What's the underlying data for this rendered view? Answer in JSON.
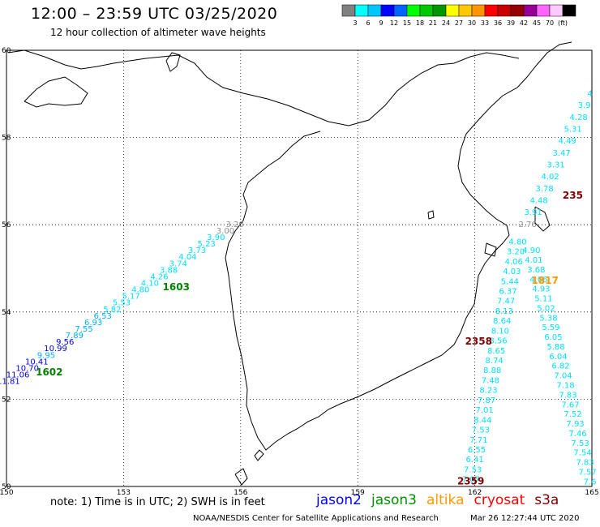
{
  "header": {
    "title": "12:00 – 23:59 UTC 03/25/2020",
    "subtitle": "12 hour collection of altimeter wave heights"
  },
  "colorbar": {
    "colors": [
      "#808080",
      "#00ffff",
      "#00c8ff",
      "#0000ff",
      "#0064ff",
      "#00ff00",
      "#00c800",
      "#009600",
      "#ffff00",
      "#ffc800",
      "#ff9600",
      "#ff0000",
      "#c80000",
      "#960000",
      "#960096",
      "#ff64ff",
      "#ffc8ff",
      "#000000"
    ],
    "labels": [
      "3",
      "6",
      "9",
      "12",
      "15",
      "18",
      "21",
      "24",
      "27",
      "30",
      "33",
      "36",
      "39",
      "42",
      "45",
      "70",
      "(ft)"
    ]
  },
  "axes": {
    "x_ticks": [
      150,
      153,
      156,
      159,
      162,
      165
    ],
    "y_ticks": [
      50,
      52,
      54,
      56,
      58,
      60
    ],
    "xlim": [
      150,
      165
    ],
    "ylim": [
      50,
      60
    ]
  },
  "swh_colors": {
    "cyan": "#00e0ff",
    "light_blue": "#00b0f0",
    "blue": "#0000e0",
    "grey": "#909090"
  },
  "tracks": [
    {
      "name": "jason3-west",
      "color": "#00e0ff",
      "label_color": "#008000",
      "start": [
        150.05,
        52.35
      ],
      "end": [
        155.85,
        55.95
      ],
      "values": [
        "11.81",
        "11.06",
        "10.70",
        "10.41",
        "9.95",
        "10.99",
        "9.56",
        "7.89",
        "7.55",
        "6.93",
        "6.53",
        "5.82",
        "5.53",
        "5.17",
        "4.80",
        "4.10",
        "4.26",
        "3.88",
        "3.74",
        "4.04",
        "3.73",
        "5.23",
        "3.90",
        "3.00",
        "3.20"
      ],
      "value_colors": [
        "#0000e0",
        "#0000e0",
        "#0000e0",
        "#0000e0",
        "#00b0f0",
        "#0000e0",
        "#0000e0",
        "#00b0f0",
        "#00b0f0",
        "#00b0f0",
        "#00b0f0",
        "#00e0ff",
        "#00e0ff",
        "#00e0ff",
        "#00e0ff",
        "#00e0ff",
        "#00e0ff",
        "#00e0ff",
        "#00e0ff",
        "#00e0ff",
        "#00e0ff",
        "#00e0ff",
        "#00e0ff",
        "#909090",
        "#909090"
      ],
      "time_labels": [
        {
          "text": "1602",
          "lon": 150.75,
          "lat": 52.55
        },
        {
          "text": "1603",
          "lon": 154.0,
          "lat": 54.5
        }
      ]
    },
    {
      "name": "cryosat-a",
      "color": "#00e0ff",
      "label_color": "#800000",
      "start": [
        164.95,
        58.95
      ],
      "end": [
        163.35,
        55.95
      ],
      "values": [
        "4",
        "3.9",
        "4.28",
        "5.31",
        "4.49",
        "3.47",
        "3.31",
        "4.02",
        "3.78",
        "4.48",
        "3.91",
        "2.76"
      ],
      "value_colors": [
        "#00e0ff",
        "#00e0ff",
        "#00e0ff",
        "#00e0ff",
        "#00e0ff",
        "#00e0ff",
        "#00e0ff",
        "#00e0ff",
        "#00e0ff",
        "#00e0ff",
        "#00e0ff",
        "#909090"
      ],
      "time_labels": [
        {
          "text": "235",
          "lon": 164.25,
          "lat": 56.6
        }
      ]
    },
    {
      "name": "cryosat-b",
      "color": "#00e0ff",
      "label_color": "#800000",
      "start": [
        161.9,
        50.1
      ],
      "end": [
        163.1,
        55.55
      ],
      "values": [
        "7.07",
        "7.53",
        "6.41",
        "6.55",
        "7.71",
        "7.53",
        "8.44",
        "7.01",
        "7.87",
        "8.23",
        "7.48",
        "8.88",
        "8.74",
        "8.65",
        "8.56",
        "8.10",
        "8.64",
        "8.13",
        "7.47",
        "6.37",
        "5.44",
        "4.03",
        "4.06",
        "3.20",
        "4.80"
      ],
      "value_colors": [
        "#00e0ff",
        "#00e0ff",
        "#00e0ff",
        "#00e0ff",
        "#00e0ff",
        "#00e0ff",
        "#00e0ff",
        "#00e0ff",
        "#00e0ff",
        "#00e0ff",
        "#00e0ff",
        "#00e0ff",
        "#00e0ff",
        "#00e0ff",
        "#00e0ff",
        "#00e0ff",
        "#00e0ff",
        "#00e0ff",
        "#00e0ff",
        "#00e0ff",
        "#00e0ff",
        "#00e0ff",
        "#00e0ff",
        "#00e0ff",
        "#00e0ff"
      ],
      "time_labels": [
        {
          "text": "2359",
          "lon": 161.55,
          "lat": 50.05
        },
        {
          "text": "2358",
          "lon": 161.75,
          "lat": 53.25
        }
      ]
    },
    {
      "name": "cryosat-c",
      "color": "#00e0ff",
      "label_color": "#800000",
      "start": [
        164.95,
        50.05
      ],
      "end": [
        163.45,
        55.35
      ],
      "values": [
        "7.6",
        "7.57",
        "7.83",
        "7.54",
        "7.53",
        "7.46",
        "7.93",
        "7.52",
        "7.67",
        "7.83",
        "7.18",
        "7.04",
        "6.82",
        "6.04",
        "5.88",
        "6.05",
        "5.59",
        "5.38",
        "5.02",
        "5.11",
        "4.93",
        "4.06",
        "3.68",
        "4.01",
        "4.90"
      ],
      "value_colors": [
        "#00e0ff",
        "#00e0ff",
        "#00e0ff",
        "#00e0ff",
        "#00e0ff",
        "#00e0ff",
        "#00e0ff",
        "#00e0ff",
        "#00e0ff",
        "#00e0ff",
        "#00e0ff",
        "#00e0ff",
        "#00e0ff",
        "#00e0ff",
        "#00e0ff",
        "#00e0ff",
        "#00e0ff",
        "#00e0ff",
        "#00e0ff",
        "#00e0ff",
        "#00e0ff",
        "#00e0ff",
        "#00e0ff",
        "#00e0ff",
        "#00e0ff"
      ],
      "time_labels": []
    },
    {
      "name": "altika",
      "color": "#ff9900",
      "label_color": "#ff9900",
      "start": [
        163.7,
        54.72
      ],
      "end": [
        163.7,
        54.72
      ],
      "values": [],
      "value_colors": [],
      "time_labels": [
        {
          "text": "1817",
          "lon": 163.45,
          "lat": 54.65
        }
      ]
    }
  ],
  "footer": {
    "note": "note:  1) Time is in UTC;  2) SWH is in feet",
    "legend": [
      {
        "name": "jason2",
        "color": "#0000ff"
      },
      {
        "name": "jason3",
        "color": "#009000"
      },
      {
        "name": "altika",
        "color": "#ff9900"
      },
      {
        "name": "cryosat",
        "color": "#ff0000"
      },
      {
        "name": "s3a",
        "color": "#800000"
      }
    ],
    "credit": "NOAA/NESDIS Center for Satellite Applications and Research",
    "timestamp": "Mar 26 12:27:44 UTC 2020"
  }
}
